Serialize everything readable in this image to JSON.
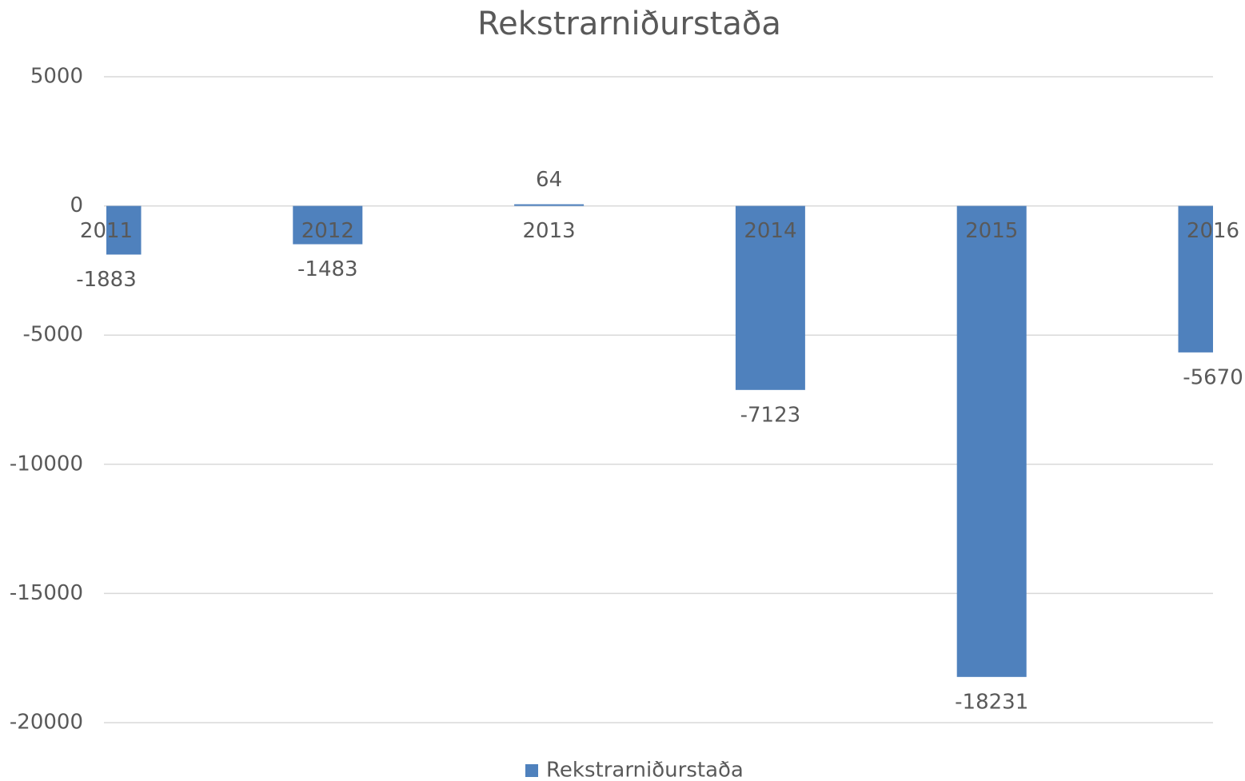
{
  "chart_data": {
    "type": "bar",
    "title": "Rekstrarniðurstaða",
    "categories": [
      "2011",
      "2012",
      "2013",
      "2014",
      "2015",
      "2016"
    ],
    "series": [
      {
        "name": "Rekstrarniðurstaða",
        "color": "#4f81bd",
        "values": [
          -1883,
          -1483,
          64,
          -7123,
          -18231,
          -5670
        ]
      }
    ],
    "ylim": [
      -20000,
      5000
    ],
    "yticks": [
      -20000,
      -15000,
      -10000,
      -5000,
      0,
      5000
    ],
    "grid": true,
    "legend": "bottom"
  }
}
